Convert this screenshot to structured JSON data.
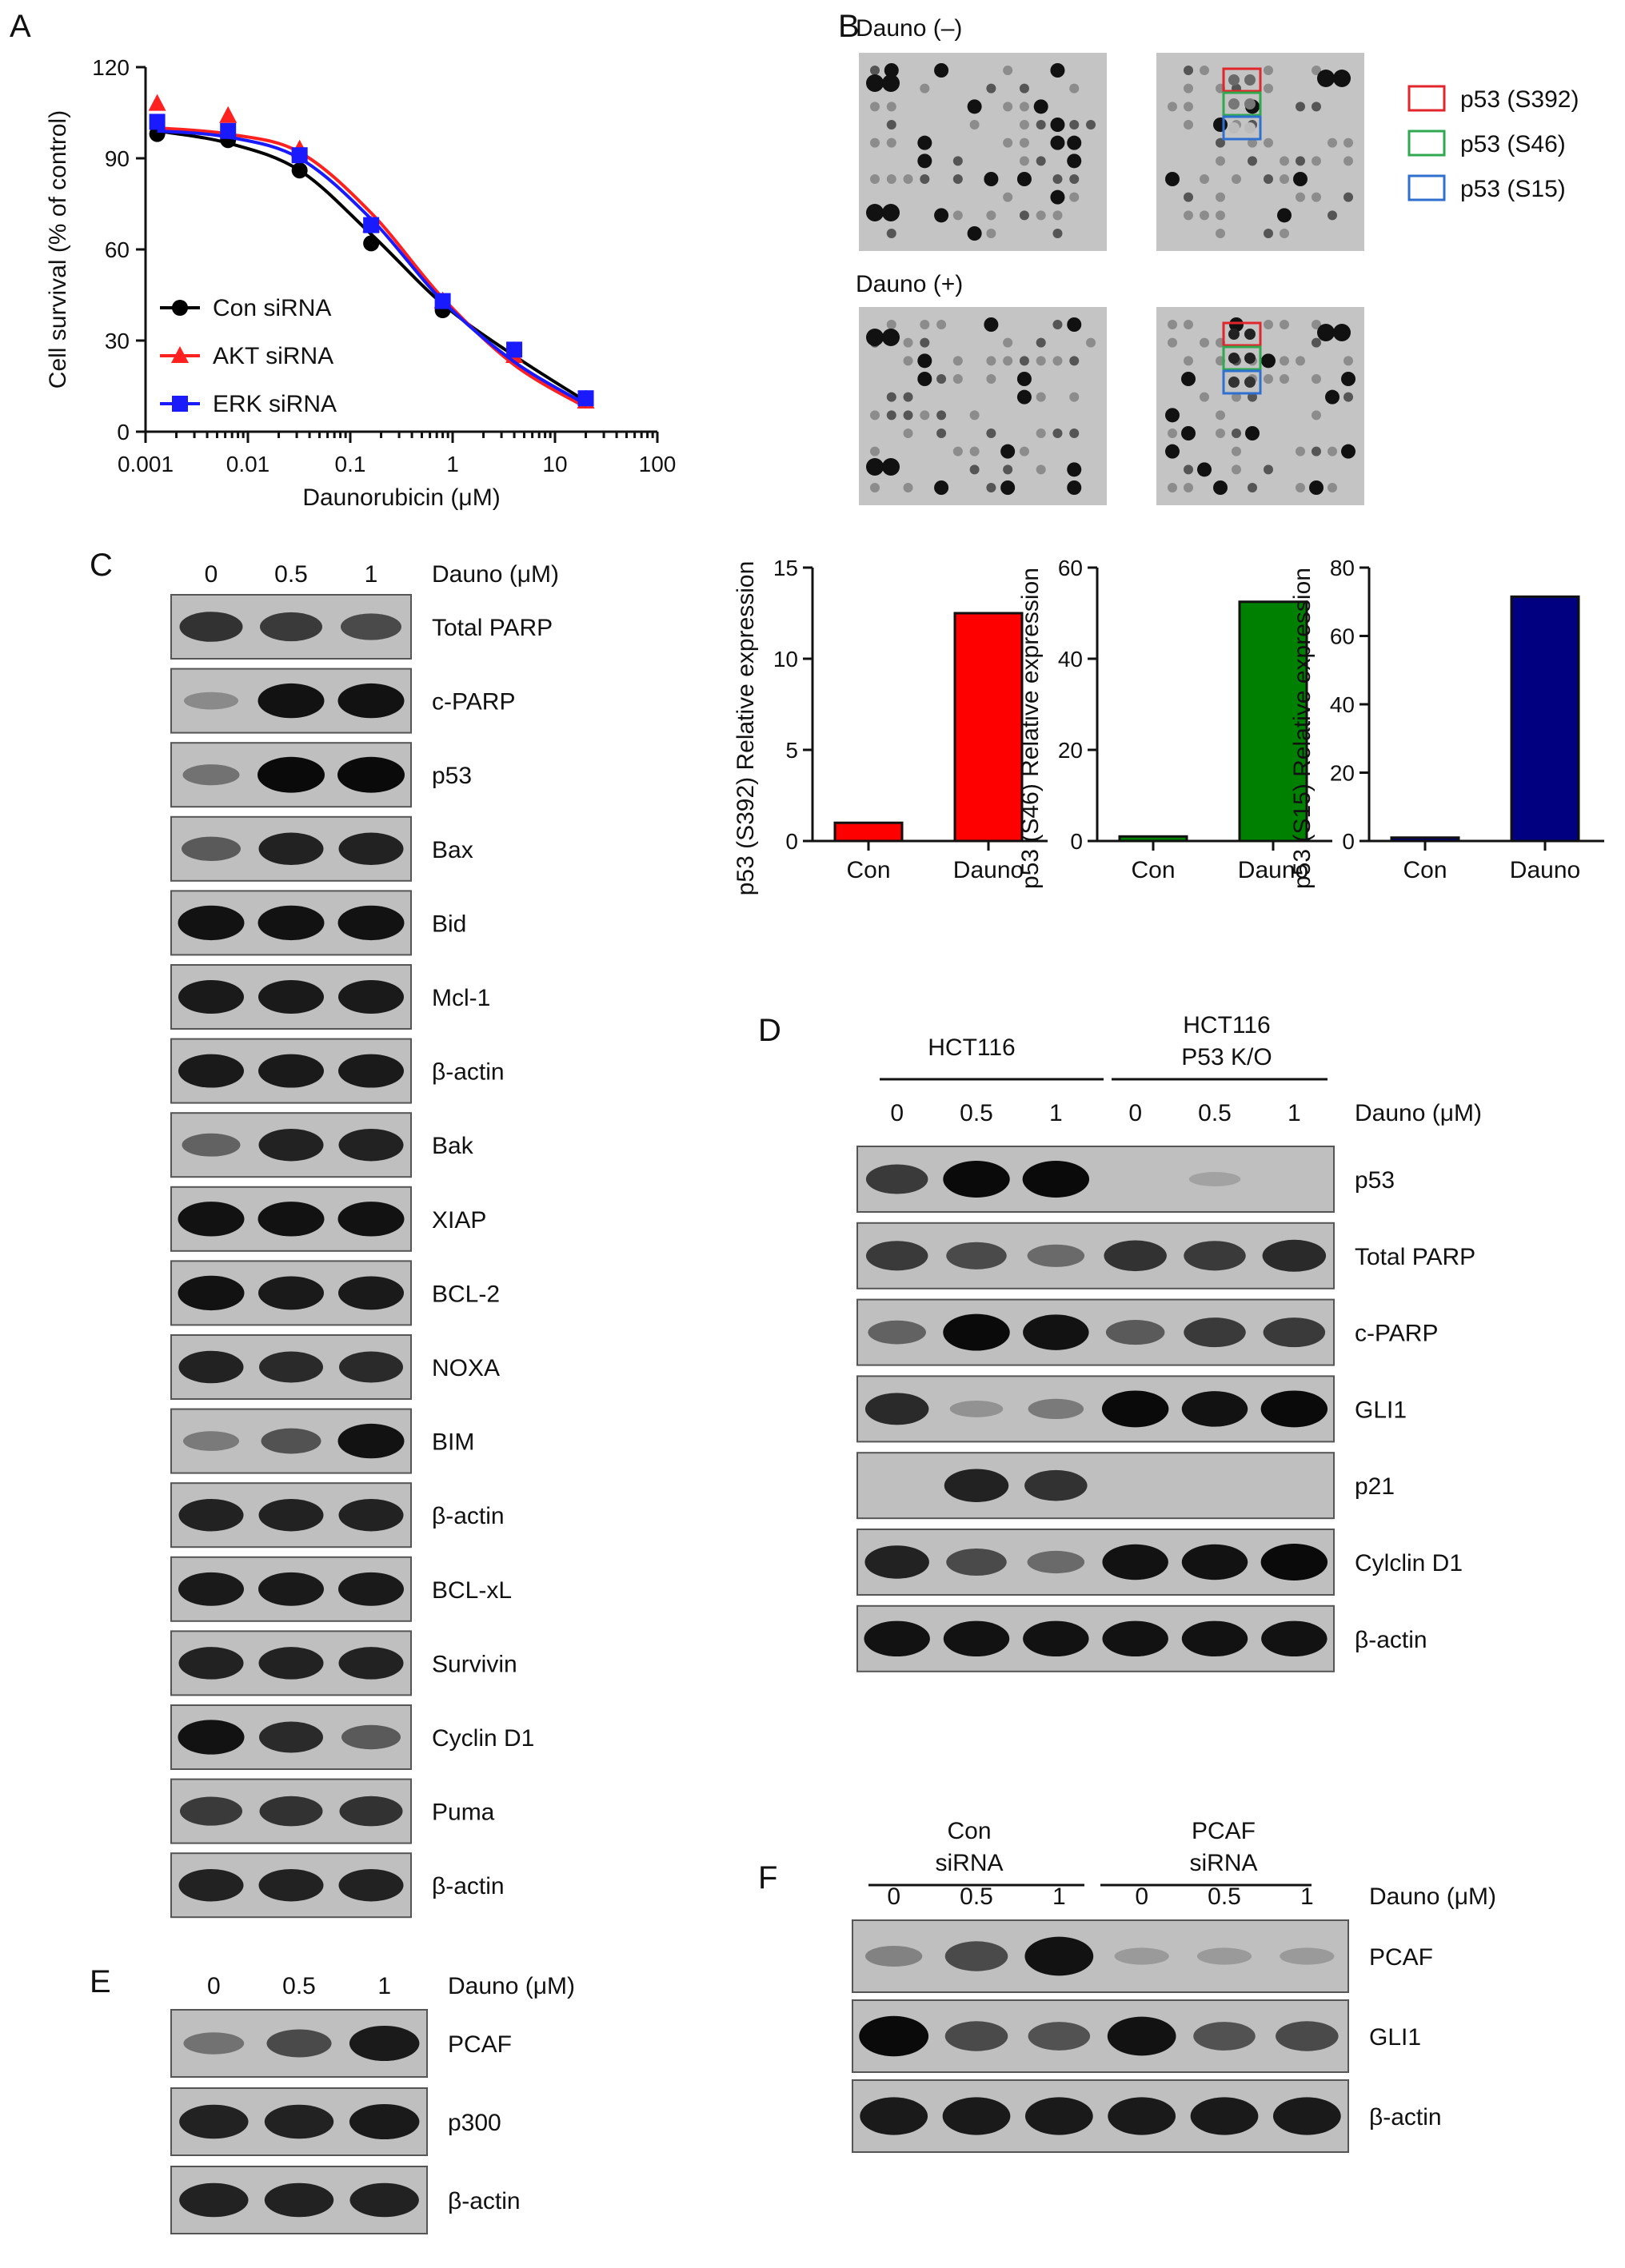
{
  "panels": {
    "A": "A",
    "B": "B",
    "C": "C",
    "D": "D",
    "E": "E",
    "F": "F"
  },
  "chart_data": [
    {
      "type": "line",
      "xlabel": "Daunorubicin (μM)",
      "ylabel": "Cell survival (% of control)",
      "xscale": "log",
      "xlim": [
        0.001,
        100
      ],
      "ylim": [
        0,
        120
      ],
      "xticks": [
        "0.001",
        "0.01",
        "0.1",
        "1",
        "10",
        "100"
      ],
      "yticks": [
        "0",
        "30",
        "60",
        "90",
        "120"
      ],
      "x": [
        0.0013,
        0.0064,
        0.032,
        0.16,
        0.8,
        4,
        20
      ],
      "legend_position": "bottom-left",
      "series": [
        {
          "name": "Con siRNA",
          "color": "#000000",
          "marker": "circle",
          "values": [
            98,
            96,
            86,
            62,
            40,
            27,
            11
          ],
          "fit": [
            99,
            95,
            86,
            65,
            42,
            25,
            10
          ]
        },
        {
          "name": "AKT siRNA",
          "color": "#ff2020",
          "marker": "triangle",
          "values": [
            108,
            104,
            93,
            68,
            43,
            25,
            10
          ],
          "fit": [
            100,
            98,
            92,
            72,
            44,
            22,
            8
          ]
        },
        {
          "name": "ERK siRNA",
          "color": "#1a1aff",
          "marker": "square",
          "values": [
            102,
            99,
            91,
            68,
            43,
            27,
            11
          ],
          "fit": [
            99,
            97,
            90,
            70,
            43,
            23,
            9
          ]
        }
      ]
    },
    {
      "type": "bar",
      "categories": [
        "Con",
        "Dauno"
      ],
      "values": [
        1,
        12.5
      ],
      "ylabel": "p53 (S392) Relative expression",
      "ylim": [
        0,
        15
      ],
      "yticks": [
        "0",
        "5",
        "10",
        "15"
      ],
      "colors": [
        "#ff0000",
        "#ff0000"
      ]
    },
    {
      "type": "bar",
      "categories": [
        "Con",
        "Dauno"
      ],
      "values": [
        1,
        52.5
      ],
      "ylabel": "p53 (S46) Relative expression",
      "ylim": [
        0,
        60
      ],
      "yticks": [
        "0",
        "20",
        "40",
        "60"
      ],
      "colors": [
        "#008000",
        "#008000"
      ]
    },
    {
      "type": "bar",
      "categories": [
        "Con",
        "Dauno"
      ],
      "values": [
        1,
        71.5
      ],
      "ylabel": "p53 (S15) Relative expression",
      "ylim": [
        0,
        80
      ],
      "yticks": [
        "0",
        "20",
        "40",
        "60",
        "80"
      ],
      "colors": [
        "#000080",
        "#000080"
      ]
    }
  ],
  "panelB": {
    "dauno_minus": "Dauno (–)",
    "dauno_plus": "Dauno (+)",
    "legend": [
      {
        "label": "p53 (S392)",
        "color": "#e0262b"
      },
      {
        "label": "p53 (S46)",
        "color": "#2fa84f"
      },
      {
        "label": "p53 (S15)",
        "color": "#2f6fcf"
      }
    ]
  },
  "panelC": {
    "doses": [
      "0",
      "0.5",
      "1"
    ],
    "dose_label": "Dauno (μM)",
    "rows": [
      {
        "label": "Total PARP",
        "levels": [
          0.75,
          0.7,
          0.6
        ]
      },
      {
        "label": "c-PARP",
        "levels": [
          0.2,
          0.95,
          0.95
        ]
      },
      {
        "label": "p53",
        "levels": [
          0.35,
          1,
          1
        ]
      },
      {
        "label": "Bax",
        "levels": [
          0.5,
          0.85,
          0.85
        ]
      },
      {
        "label": "Bid",
        "levels": [
          0.95,
          0.95,
          0.95
        ]
      },
      {
        "label": "Mcl-1",
        "levels": [
          0.9,
          0.9,
          0.9
        ]
      },
      {
        "label": "β-actin",
        "levels": [
          0.9,
          0.9,
          0.9
        ]
      },
      {
        "label": "Bak",
        "levels": [
          0.45,
          0.85,
          0.85
        ]
      },
      {
        "label": "XIAP",
        "levels": [
          0.95,
          0.95,
          0.95
        ]
      },
      {
        "label": "BCL-2",
        "levels": [
          0.95,
          0.9,
          0.9
        ]
      },
      {
        "label": "NOXA",
        "levels": [
          0.85,
          0.8,
          0.8
        ]
      },
      {
        "label": "BIM",
        "levels": [
          0.3,
          0.55,
          0.95
        ]
      },
      {
        "label": "β-actin",
        "levels": [
          0.85,
          0.85,
          0.85
        ]
      },
      {
        "label": "BCL-xL",
        "levels": [
          0.9,
          0.9,
          0.9
        ]
      },
      {
        "label": "Survivin",
        "levels": [
          0.85,
          0.85,
          0.85
        ]
      },
      {
        "label": "Cyclin D1",
        "levels": [
          0.95,
          0.8,
          0.5
        ]
      },
      {
        "label": "Puma",
        "levels": [
          0.7,
          0.75,
          0.75
        ]
      },
      {
        "label": "β-actin",
        "levels": [
          0.85,
          0.85,
          0.85
        ]
      }
    ]
  },
  "panelD": {
    "group1": "HCT116",
    "group2_line1": "HCT116",
    "group2_line2": "P53 K/O",
    "doses": [
      "0",
      "0.5",
      "1",
      "0",
      "0.5",
      "1"
    ],
    "dose_label": "Dauno (μM)",
    "rows": [
      {
        "label": "p53",
        "levels": [
          0.7,
          1,
          1,
          0,
          0.05,
          0
        ]
      },
      {
        "label": "Total PARP",
        "levels": [
          0.7,
          0.6,
          0.4,
          0.75,
          0.7,
          0.8
        ]
      },
      {
        "label": "c-PARP",
        "levels": [
          0.45,
          1,
          0.95,
          0.5,
          0.7,
          0.7
        ]
      },
      {
        "label": "GLI1",
        "levels": [
          0.8,
          0.15,
          0.3,
          1,
          0.95,
          1
        ]
      },
      {
        "label": "p21",
        "levels": [
          0,
          0.85,
          0.75,
          0,
          0,
          0
        ]
      },
      {
        "label": "Cylclin D1",
        "levels": [
          0.85,
          0.6,
          0.4,
          0.95,
          0.95,
          1
        ]
      },
      {
        "label": "β-actin",
        "levels": [
          0.95,
          0.95,
          0.95,
          0.95,
          0.95,
          0.95
        ]
      }
    ]
  },
  "panelE": {
    "doses": [
      "0",
      "0.5",
      "1"
    ],
    "dose_label": "Dauno (μM)",
    "rows": [
      {
        "label": "PCAF",
        "levels": [
          0.35,
          0.6,
          0.9
        ]
      },
      {
        "label": "p300",
        "levels": [
          0.85,
          0.85,
          0.9
        ]
      },
      {
        "label": "β-actin",
        "levels": [
          0.85,
          0.85,
          0.85
        ]
      }
    ]
  },
  "panelF": {
    "group1_line1": "Con",
    "group1_line2": "siRNA",
    "group2_line1": "PCAF",
    "group2_line2": "siRNA",
    "doses": [
      "0",
      "0.5",
      "1",
      "0",
      "0.5",
      "1"
    ],
    "dose_label": "Dauno (μM)",
    "rows": [
      {
        "label": "PCAF",
        "levels": [
          0.25,
          0.6,
          0.95,
          0.1,
          0.1,
          0.1
        ]
      },
      {
        "label": "GLI1",
        "levels": [
          1,
          0.6,
          0.55,
          0.95,
          0.55,
          0.6
        ]
      },
      {
        "label": "β-actin",
        "levels": [
          0.9,
          0.9,
          0.9,
          0.9,
          0.9,
          0.9
        ]
      }
    ]
  }
}
